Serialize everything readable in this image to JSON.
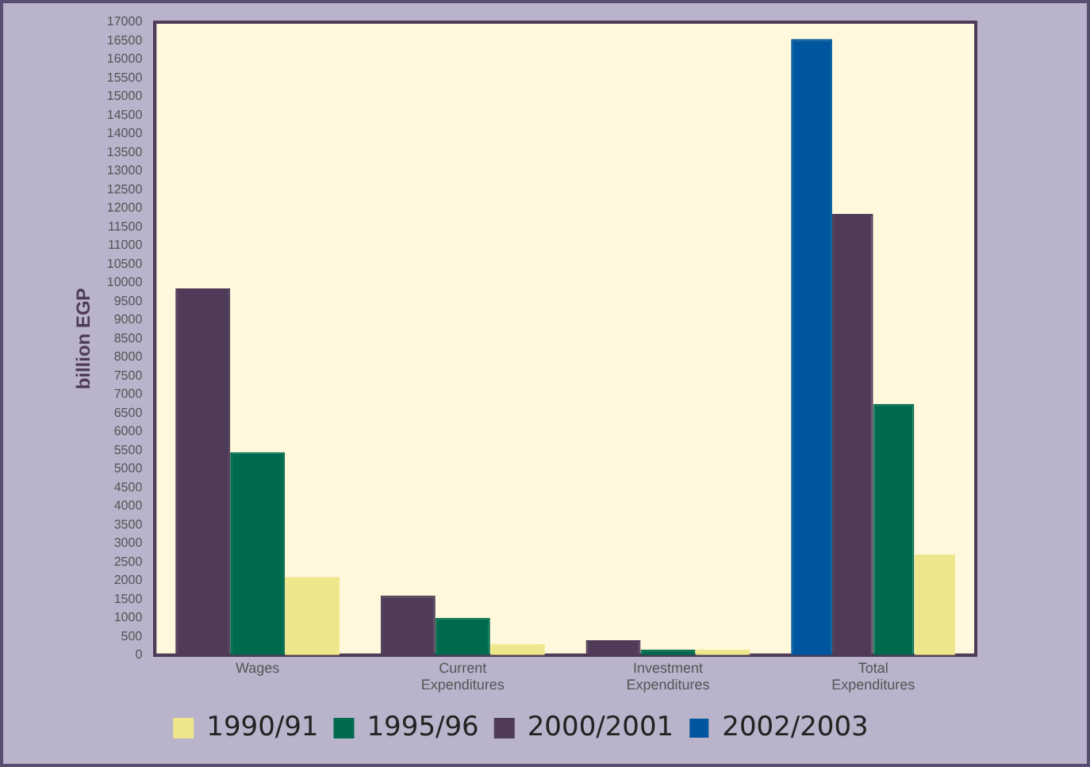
{
  "chart_data": {
    "type": "bar",
    "ylabel": "billion EGP",
    "categories": [
      "Wages",
      "Current Expenditures",
      "Investment Expenditures",
      "Total Expenditures"
    ],
    "series": [
      {
        "name": "2002/2003",
        "color": "#0057a0",
        "values": [
          null,
          null,
          null,
          16550
        ]
      },
      {
        "name": "2000/2001",
        "color": "#4f3b58",
        "values": [
          9850,
          1600,
          400,
          11850
        ]
      },
      {
        "name": "1995/96",
        "color": "#006a4e",
        "values": [
          5450,
          1000,
          150,
          6750
        ]
      },
      {
        "name": "1990/91",
        "color": "#eee68a",
        "values": [
          2100,
          300,
          150,
          2700
        ]
      }
    ],
    "ylim": [
      0,
      17000
    ],
    "yticks": [
      0,
      500,
      1000,
      1500,
      2000,
      2500,
      3000,
      3500,
      4000,
      4500,
      5000,
      5500,
      6000,
      6500,
      7000,
      7500,
      8000,
      8500,
      9000,
      9500,
      10000,
      10500,
      11000,
      11500,
      12000,
      12500,
      13000,
      13500,
      14000,
      14500,
      15000,
      15500,
      16000,
      16500,
      17000
    ],
    "grid": false,
    "legend": "bottom"
  }
}
